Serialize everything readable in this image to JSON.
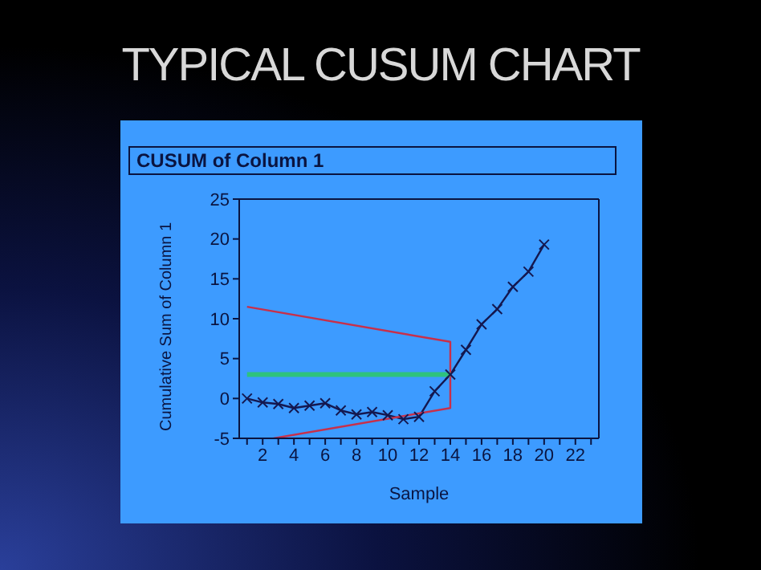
{
  "chart_data": {
    "type": "line",
    "title": "TYPICAL CUSUM CHART",
    "subtitle": "CUSUM of Column 1",
    "xlabel": "Sample",
    "ylabel": "Cumulative Sum of Column 1",
    "xlim": [
      0.5,
      23.5
    ],
    "xticks": [
      {
        "value": 1,
        "label": null
      },
      2,
      {
        "value": 3,
        "label": null
      },
      4,
      {
        "value": 5,
        "label": null
      },
      6,
      {
        "value": 7,
        "label": null
      },
      8,
      {
        "value": 9,
        "label": null
      },
      10,
      {
        "value": 11,
        "label": null
      },
      12,
      {
        "value": 13,
        "label": null
      },
      14,
      {
        "value": 15,
        "label": null
      },
      16,
      {
        "value": 17,
        "label": null
      },
      18,
      {
        "value": 19,
        "label": null
      },
      20,
      {
        "value": 21,
        "label": null
      },
      22,
      {
        "value": 23,
        "label": null
      }
    ],
    "ylim": [
      -5,
      25
    ],
    "yticks": [
      -5,
      0,
      5,
      10,
      15,
      20,
      25
    ],
    "series": [
      {
        "color": "#141850",
        "marker": "cross",
        "x": [
          1,
          2,
          3,
          4,
          5,
          6,
          7,
          8,
          9,
          10,
          11,
          12,
          13,
          14,
          15,
          16,
          17,
          18,
          19,
          20
        ],
        "values": [
          0,
          -0.5,
          -0.7,
          -1.2,
          -0.9,
          -0.6,
          -1.5,
          -2,
          -1.7,
          -2.1,
          -2.6,
          -2.3,
          0.9,
          3,
          6.1,
          9.3,
          11.2,
          14,
          15.9,
          19.3
        ]
      },
      {
        "color": "#c8304a",
        "marker": "none",
        "x": [
          1,
          14,
          14,
          14,
          2.7
        ],
        "values": [
          11.5,
          7.1,
          7.1,
          -1.2,
          -5
        ]
      },
      {
        "color": "#2ec27e",
        "marker": "none",
        "x": [
          1,
          14
        ],
        "values": [
          3,
          3
        ]
      }
    ]
  }
}
